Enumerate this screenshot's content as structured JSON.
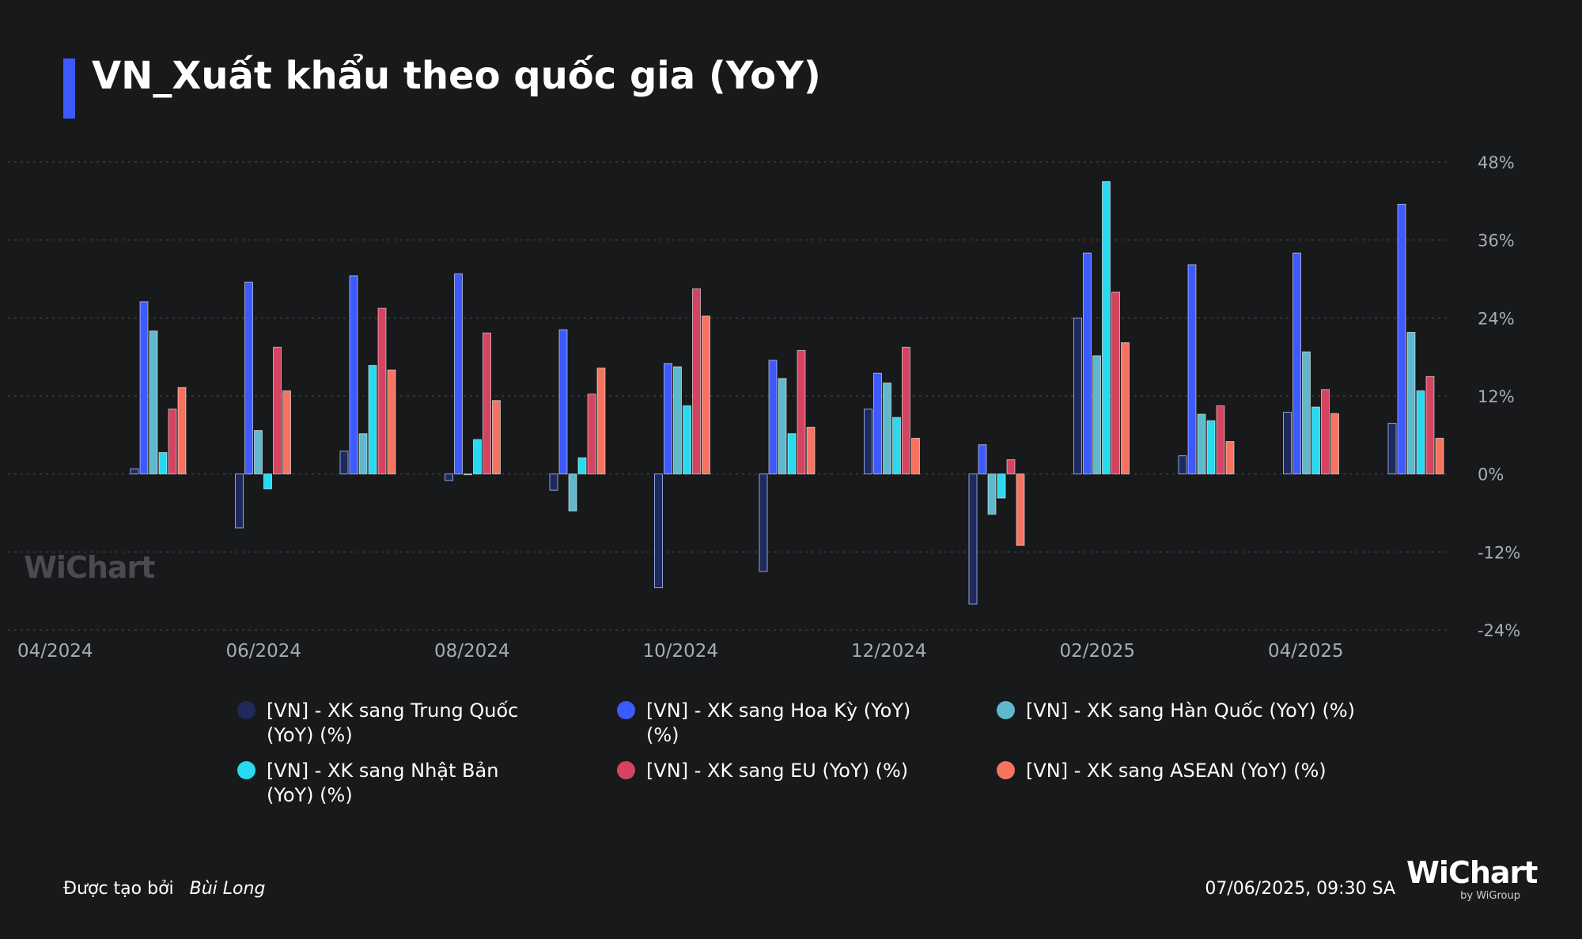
{
  "title": "VN_Xuất khẩu theo quốc gia (YoY)",
  "watermark": "WiChart",
  "footer": {
    "created_by": "Được tạo bởi",
    "author": "Bùi Long",
    "timestamp": "07/06/2025, 09:30 SA"
  },
  "brand": {
    "name": "WiChart",
    "sub": "by WiGroup"
  },
  "colors": {
    "background": "#18191b",
    "china": "#1e2a5c",
    "us": "#3d5afe",
    "korea": "#5fb8cc",
    "japan": "#29d9f0",
    "eu": "#d44461",
    "asean": "#f5735f",
    "grid": "#3a3b3e",
    "axis_text": "#a8acb3"
  },
  "chart_data": {
    "type": "bar",
    "title": "VN_Xuất khẩu theo quốc gia (YoY)",
    "x_tick_labels": [
      "04/2024",
      "06/2024",
      "08/2024",
      "10/2024",
      "12/2024",
      "02/2025",
      "04/2025"
    ],
    "categories": [
      "05/2024",
      "06/2024",
      "07/2024",
      "08/2024",
      "09/2024",
      "10/2024",
      "11/2024",
      "12/2024",
      "01/2025",
      "02/2025",
      "03/2025",
      "04/2025",
      "05/2025"
    ],
    "y_ticks": [
      "48%",
      "36%",
      "24%",
      "12%",
      "0%",
      "-12%",
      "-24%"
    ],
    "y_tick_values": [
      48,
      36,
      24,
      12,
      0,
      -12,
      -24
    ],
    "ylim": [
      -24,
      48
    ],
    "grid": true,
    "legend_position": "bottom",
    "series": [
      {
        "name": "[VN] - XK sang Trung Quốc (YoY) (%)",
        "color_key": "china",
        "values": [
          0.8,
          -8.3,
          3.5,
          -1.0,
          -2.5,
          -17.5,
          -15.0,
          10.0,
          -20.0,
          24.0,
          2.8,
          9.5,
          7.8
        ]
      },
      {
        "name": "[VN] - XK sang Hoa Kỳ (YoY) (%)",
        "color_key": "us",
        "values": [
          26.5,
          29.5,
          30.5,
          30.8,
          22.2,
          17.0,
          17.5,
          15.5,
          4.5,
          34.0,
          32.2,
          34.0,
          41.5
        ]
      },
      {
        "name": "[VN] - XK sang Hàn Quốc (YoY) (%)",
        "color_key": "korea",
        "values": [
          22.0,
          6.7,
          6.2,
          0.0,
          -5.7,
          16.5,
          14.7,
          14.0,
          -6.2,
          18.2,
          9.2,
          18.8,
          21.8
        ]
      },
      {
        "name": "[VN] - XK sang Nhật Bản (YoY) (%)",
        "color_key": "japan",
        "values": [
          3.3,
          -2.3,
          16.7,
          5.3,
          2.5,
          10.5,
          6.2,
          8.7,
          -3.7,
          45.0,
          8.2,
          10.3,
          12.8
        ]
      },
      {
        "name": "[VN] - XK sang EU (YoY) (%)",
        "color_key": "eu",
        "values": [
          10.0,
          19.5,
          25.5,
          21.7,
          12.3,
          28.5,
          19.0,
          19.5,
          2.2,
          28.0,
          10.5,
          13.0,
          15.0
        ]
      },
      {
        "name": "[VN] - XK sang ASEAN (YoY) (%)",
        "color_key": "asean",
        "values": [
          13.3,
          12.8,
          16.0,
          11.3,
          16.3,
          24.3,
          7.2,
          5.5,
          -11.0,
          20.2,
          5.0,
          9.3,
          5.5
        ]
      }
    ]
  }
}
